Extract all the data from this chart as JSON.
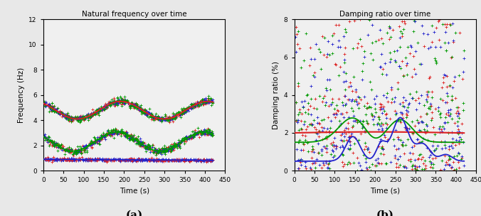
{
  "title_a": "Natural frequency over time",
  "title_b": "Damping ratio over time",
  "xlabel": "Time (s)",
  "ylabel_a": "Frequency (Hz)",
  "ylabel_b": "Damping ratio (%)",
  "label_a": "(a)",
  "label_b": "(b)",
  "xlim": [
    0,
    450
  ],
  "ylim_a": [
    0,
    12
  ],
  "ylim_b": [
    0,
    8
  ],
  "xticks_a": [
    0,
    50,
    100,
    150,
    200,
    250,
    300,
    350,
    400,
    450
  ],
  "xticks_b": [
    0,
    50,
    100,
    150,
    200,
    250,
    300,
    350,
    400,
    450
  ],
  "yticks_a": [
    0,
    2,
    4,
    6,
    8,
    10,
    12
  ],
  "yticks_b": [
    0,
    2,
    4,
    6,
    8
  ],
  "colors": {
    "red": "#dd2020",
    "green": "#009900",
    "blue": "#2222cc"
  },
  "scatter_marker": "+",
  "scatter_size": 12,
  "line_width": 1.3,
  "axes_facecolor": "#f0f0f0",
  "fig_facecolor": "#e8e8e8"
}
